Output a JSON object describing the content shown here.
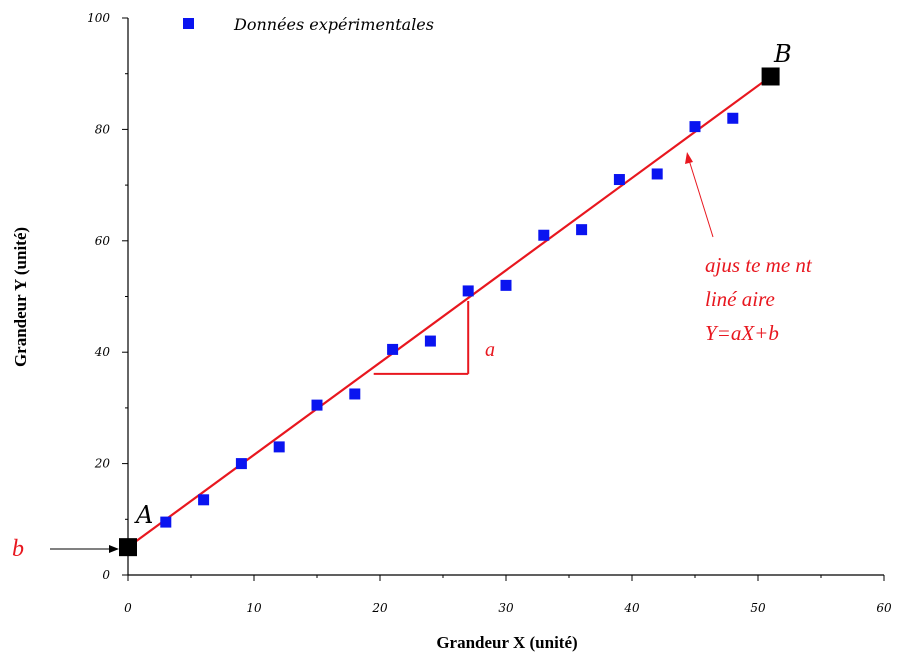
{
  "chart_data": {
    "type": "scatter",
    "xlabel": "Grandeur X (unité)",
    "ylabel": "Grandeur Y (unité)",
    "xlim": [
      0,
      60
    ],
    "ylim": [
      0,
      100
    ],
    "xticks": [
      "0",
      "10",
      "20",
      "30",
      "40",
      "50",
      "60"
    ],
    "yticks": [
      "0",
      "20",
      "40",
      "60",
      "80",
      "100"
    ],
    "grid": false,
    "legend_position": "top-left",
    "series": [
      {
        "name": "Données expérimentales",
        "color": "#0a14f0",
        "marker": "square",
        "x": [
          3,
          6,
          9,
          12,
          15,
          18,
          21,
          24,
          27,
          30,
          33,
          36,
          39,
          42,
          45,
          48
        ],
        "y": [
          9.5,
          13.5,
          20,
          23,
          30.5,
          32.5,
          40.5,
          42,
          51,
          52,
          61,
          62,
          71,
          72,
          80.5,
          82
        ]
      }
    ],
    "fit_line": {
      "color": "#e8171f",
      "x": [
        0,
        51
      ],
      "y": [
        5,
        89.5
      ]
    },
    "points": [
      {
        "label": "A",
        "x": 0,
        "y": 5
      },
      {
        "label": "B",
        "x": 51,
        "y": 89.5
      }
    ],
    "slope_triangle": {
      "x_start": 19.5,
      "x_end": 27,
      "y_low": 36.1,
      "y_high": 49.2,
      "label": "a"
    },
    "annotations": {
      "b_label": "b",
      "fit_label_lines": [
        "ajus te me nt",
        "liné aire",
        "Y=aX+b"
      ]
    }
  }
}
